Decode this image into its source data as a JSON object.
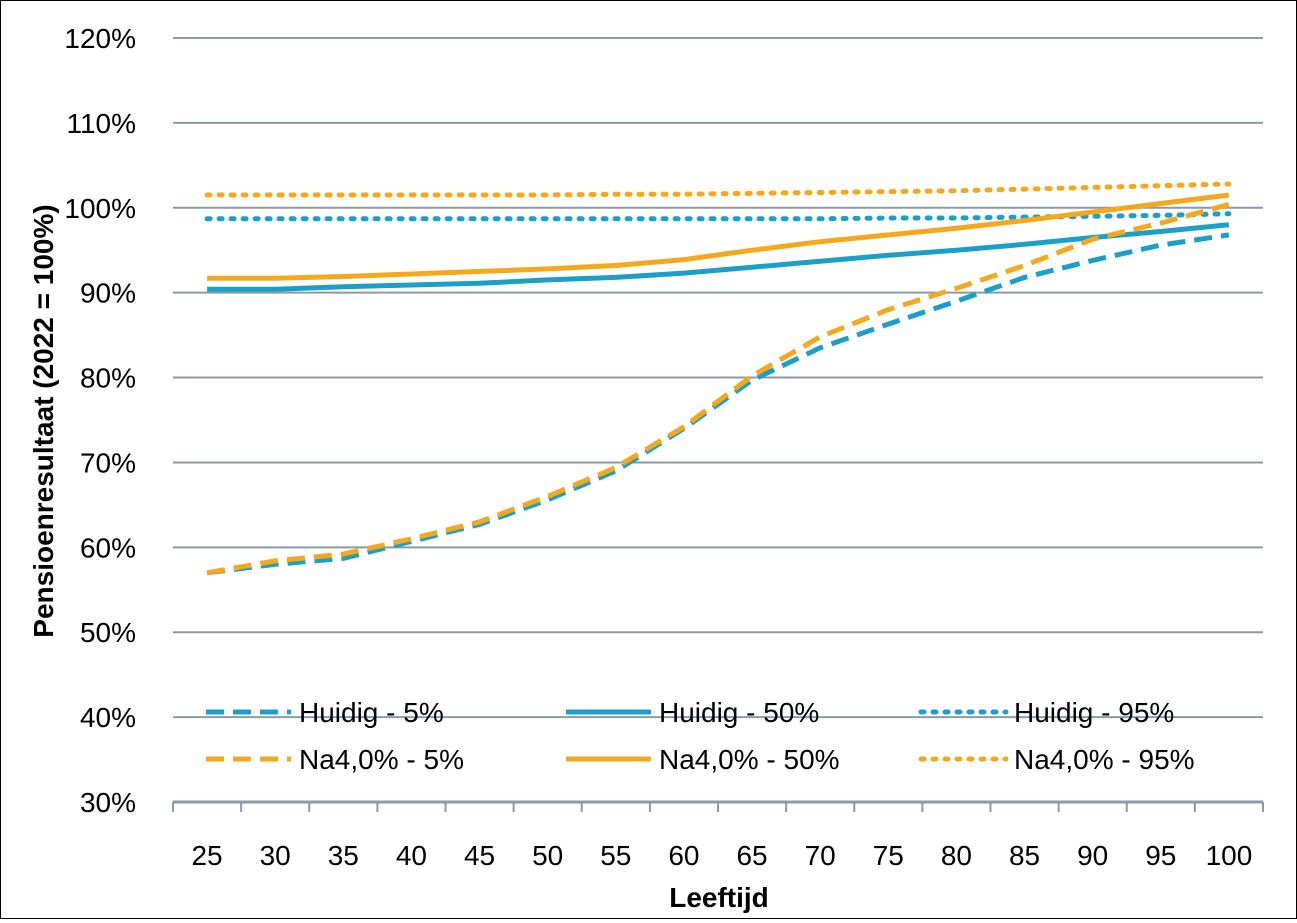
{
  "chart_data": {
    "type": "line",
    "title": "",
    "xlabel": "Leeftijd",
    "ylabel": "Pensioenresultaat  (2022 = 100%)",
    "x": [
      25,
      30,
      35,
      40,
      45,
      50,
      55,
      60,
      65,
      70,
      75,
      80,
      85,
      90,
      95,
      100
    ],
    "x_tick_labels": [
      "25",
      "30",
      "35",
      "40",
      "45",
      "50",
      "55",
      "60",
      "65",
      "70",
      "75",
      "80",
      "85",
      "90",
      "95",
      "100"
    ],
    "y_tick_labels": [
      "30%",
      "40%",
      "50%",
      "60%",
      "70%",
      "80%",
      "90%",
      "100%",
      "110%",
      "120%"
    ],
    "y_unit": "%",
    "ylim": [
      30,
      120
    ],
    "grid": "horizontal",
    "legend_position": "bottom-inside",
    "series": [
      {
        "name": "Huidig - 5%",
        "color": "#1aa0c8",
        "style": "dashed",
        "values": [
          57.0,
          58.0,
          58.7,
          60.7,
          62.7,
          65.6,
          69.0,
          74.0,
          79.7,
          83.5,
          86.3,
          89.0,
          91.8,
          93.8,
          95.6,
          96.8
        ]
      },
      {
        "name": "Huidig - 50%",
        "color": "#1aa0c8",
        "style": "solid",
        "values": [
          90.4,
          90.4,
          90.7,
          90.9,
          91.1,
          91.5,
          91.8,
          92.3,
          93.0,
          93.7,
          94.4,
          95.0,
          95.7,
          96.5,
          97.2,
          98.0
        ]
      },
      {
        "name": "Huidig - 95%",
        "color": "#1aa0c8",
        "style": "dotted",
        "values": [
          98.7,
          98.7,
          98.7,
          98.7,
          98.7,
          98.7,
          98.7,
          98.7,
          98.7,
          98.7,
          98.8,
          98.8,
          98.9,
          99.0,
          99.1,
          99.3
        ]
      },
      {
        "name": "Na4,0% - 5%",
        "color": "#f5a81c",
        "style": "dashed",
        "values": [
          57.0,
          58.4,
          59.2,
          61.0,
          63.0,
          66.0,
          69.4,
          74.2,
          80.2,
          84.8,
          88.0,
          90.5,
          93.2,
          96.3,
          98.2,
          100.4
        ]
      },
      {
        "name": "Na4,0% - 50%",
        "color": "#f5a81c",
        "style": "solid",
        "values": [
          91.7,
          91.7,
          91.9,
          92.2,
          92.5,
          92.8,
          93.2,
          93.9,
          95.0,
          96.0,
          96.8,
          97.6,
          98.5,
          99.5,
          100.5,
          101.5
        ]
      },
      {
        "name": "Na4,0% - 95%",
        "color": "#f5a81c",
        "style": "dotted",
        "values": [
          101.5,
          101.5,
          101.5,
          101.5,
          101.5,
          101.5,
          101.6,
          101.6,
          101.7,
          101.8,
          101.9,
          102.0,
          102.2,
          102.4,
          102.6,
          102.8
        ]
      }
    ]
  }
}
